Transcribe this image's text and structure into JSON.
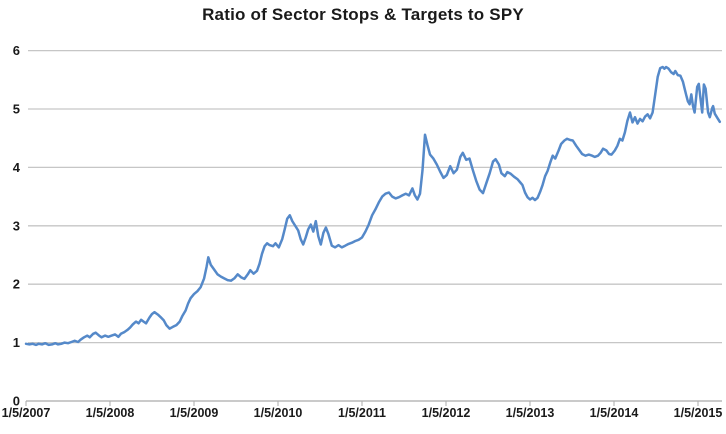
{
  "page": {
    "background": "#ffffff"
  },
  "chart_data": {
    "type": "line",
    "title": "Ratio of Sector Stops & Targets to SPY",
    "xlabel": "",
    "ylabel": "",
    "legend": "none",
    "grid": "horizontal",
    "ylim": [
      0,
      6
    ],
    "y_ticks": [
      0,
      1,
      2,
      3,
      4,
      5,
      6
    ],
    "x_tick_labels": [
      "1/5/2007",
      "1/5/2008",
      "1/5/2009",
      "1/5/2010",
      "1/5/2011",
      "1/5/2012",
      "1/5/2013",
      "1/5/2014",
      "1/5/2015"
    ],
    "x_tick_years": [
      2007,
      2008,
      2009,
      2010,
      2011,
      2012,
      2013,
      2014,
      2015
    ],
    "xlim": [
      2007,
      2015.33
    ],
    "line_color": "#5589c9",
    "gridline_color": "#c6c6c6",
    "axis_color": "#ababab",
    "text_color": "#1a1a1a",
    "series": [
      {
        "name": "Ratio of Sector Stops & Targets to SPY",
        "points": [
          [
            2007.0,
            0.98
          ],
          [
            2007.04,
            0.97
          ],
          [
            2007.08,
            0.98
          ],
          [
            2007.12,
            0.96
          ],
          [
            2007.15,
            0.98
          ],
          [
            2007.19,
            0.97
          ],
          [
            2007.23,
            0.99
          ],
          [
            2007.27,
            0.96
          ],
          [
            2007.31,
            0.97
          ],
          [
            2007.35,
            0.99
          ],
          [
            2007.38,
            0.97
          ],
          [
            2007.42,
            0.98
          ],
          [
            2007.46,
            1.0
          ],
          [
            2007.5,
            0.99
          ],
          [
            2007.54,
            1.01
          ],
          [
            2007.58,
            1.03
          ],
          [
            2007.62,
            1.01
          ],
          [
            2007.65,
            1.05
          ],
          [
            2007.69,
            1.09
          ],
          [
            2007.73,
            1.12
          ],
          [
            2007.76,
            1.09
          ],
          [
            2007.8,
            1.15
          ],
          [
            2007.83,
            1.17
          ],
          [
            2007.87,
            1.12
          ],
          [
            2007.9,
            1.09
          ],
          [
            2007.94,
            1.12
          ],
          [
            2007.98,
            1.1
          ],
          [
            2008.02,
            1.12
          ],
          [
            2008.06,
            1.14
          ],
          [
            2008.1,
            1.1
          ],
          [
            2008.13,
            1.15
          ],
          [
            2008.17,
            1.18
          ],
          [
            2008.21,
            1.22
          ],
          [
            2008.24,
            1.26
          ],
          [
            2008.27,
            1.31
          ],
          [
            2008.31,
            1.36
          ],
          [
            2008.34,
            1.33
          ],
          [
            2008.37,
            1.39
          ],
          [
            2008.4,
            1.36
          ],
          [
            2008.43,
            1.33
          ],
          [
            2008.47,
            1.43
          ],
          [
            2008.5,
            1.49
          ],
          [
            2008.53,
            1.52
          ],
          [
            2008.57,
            1.48
          ],
          [
            2008.6,
            1.44
          ],
          [
            2008.64,
            1.38
          ],
          [
            2008.67,
            1.3
          ],
          [
            2008.71,
            1.24
          ],
          [
            2008.75,
            1.27
          ],
          [
            2008.79,
            1.3
          ],
          [
            2008.83,
            1.36
          ],
          [
            2008.86,
            1.45
          ],
          [
            2008.9,
            1.55
          ],
          [
            2008.93,
            1.67
          ],
          [
            2008.96,
            1.76
          ],
          [
            2009.0,
            1.83
          ],
          [
            2009.04,
            1.88
          ],
          [
            2009.08,
            1.95
          ],
          [
            2009.12,
            2.1
          ],
          [
            2009.15,
            2.3
          ],
          [
            2009.17,
            2.46
          ],
          [
            2009.2,
            2.33
          ],
          [
            2009.24,
            2.25
          ],
          [
            2009.28,
            2.17
          ],
          [
            2009.32,
            2.13
          ],
          [
            2009.36,
            2.1
          ],
          [
            2009.4,
            2.07
          ],
          [
            2009.44,
            2.06
          ],
          [
            2009.48,
            2.1
          ],
          [
            2009.52,
            2.17
          ],
          [
            2009.56,
            2.12
          ],
          [
            2009.6,
            2.09
          ],
          [
            2009.64,
            2.17
          ],
          [
            2009.67,
            2.24
          ],
          [
            2009.71,
            2.18
          ],
          [
            2009.75,
            2.23
          ],
          [
            2009.78,
            2.35
          ],
          [
            2009.81,
            2.52
          ],
          [
            2009.84,
            2.65
          ],
          [
            2009.87,
            2.7
          ],
          [
            2009.9,
            2.67
          ],
          [
            2009.94,
            2.65
          ],
          [
            2009.97,
            2.7
          ],
          [
            2010.01,
            2.63
          ],
          [
            2010.05,
            2.77
          ],
          [
            2010.08,
            2.94
          ],
          [
            2010.11,
            3.12
          ],
          [
            2010.14,
            3.18
          ],
          [
            2010.17,
            3.08
          ],
          [
            2010.21,
            2.99
          ],
          [
            2010.24,
            2.92
          ],
          [
            2010.27,
            2.77
          ],
          [
            2010.3,
            2.68
          ],
          [
            2010.33,
            2.8
          ],
          [
            2010.36,
            2.94
          ],
          [
            2010.39,
            3.02
          ],
          [
            2010.42,
            2.9
          ],
          [
            2010.45,
            3.08
          ],
          [
            2010.48,
            2.82
          ],
          [
            2010.51,
            2.68
          ],
          [
            2010.54,
            2.88
          ],
          [
            2010.57,
            2.97
          ],
          [
            2010.6,
            2.86
          ],
          [
            2010.64,
            2.66
          ],
          [
            2010.68,
            2.63
          ],
          [
            2010.72,
            2.67
          ],
          [
            2010.76,
            2.63
          ],
          [
            2010.8,
            2.66
          ],
          [
            2010.84,
            2.69
          ],
          [
            2010.88,
            2.71
          ],
          [
            2010.92,
            2.74
          ],
          [
            2010.96,
            2.76
          ],
          [
            2011.0,
            2.8
          ],
          [
            2011.04,
            2.9
          ],
          [
            2011.08,
            3.02
          ],
          [
            2011.12,
            3.18
          ],
          [
            2011.16,
            3.28
          ],
          [
            2011.2,
            3.4
          ],
          [
            2011.24,
            3.5
          ],
          [
            2011.28,
            3.55
          ],
          [
            2011.32,
            3.57
          ],
          [
            2011.36,
            3.5
          ],
          [
            2011.4,
            3.47
          ],
          [
            2011.44,
            3.49
          ],
          [
            2011.48,
            3.52
          ],
          [
            2011.52,
            3.55
          ],
          [
            2011.56,
            3.52
          ],
          [
            2011.6,
            3.64
          ],
          [
            2011.63,
            3.52
          ],
          [
            2011.66,
            3.45
          ],
          [
            2011.69,
            3.55
          ],
          [
            2011.72,
            3.95
          ],
          [
            2011.75,
            4.56
          ],
          [
            2011.78,
            4.38
          ],
          [
            2011.81,
            4.22
          ],
          [
            2011.85,
            4.15
          ],
          [
            2011.89,
            4.05
          ],
          [
            2011.93,
            3.93
          ],
          [
            2011.97,
            3.82
          ],
          [
            2012.01,
            3.87
          ],
          [
            2012.05,
            4.02
          ],
          [
            2012.09,
            3.9
          ],
          [
            2012.13,
            3.96
          ],
          [
            2012.17,
            4.18
          ],
          [
            2012.2,
            4.25
          ],
          [
            2012.24,
            4.13
          ],
          [
            2012.28,
            4.15
          ],
          [
            2012.32,
            3.95
          ],
          [
            2012.36,
            3.77
          ],
          [
            2012.4,
            3.62
          ],
          [
            2012.44,
            3.56
          ],
          [
            2012.48,
            3.73
          ],
          [
            2012.52,
            3.9
          ],
          [
            2012.56,
            4.1
          ],
          [
            2012.59,
            4.14
          ],
          [
            2012.63,
            4.05
          ],
          [
            2012.66,
            3.9
          ],
          [
            2012.7,
            3.85
          ],
          [
            2012.73,
            3.92
          ],
          [
            2012.77,
            3.89
          ],
          [
            2012.81,
            3.84
          ],
          [
            2012.85,
            3.8
          ],
          [
            2012.88,
            3.75
          ],
          [
            2012.91,
            3.7
          ],
          [
            2012.94,
            3.57
          ],
          [
            2012.97,
            3.49
          ],
          [
            2013.0,
            3.45
          ],
          [
            2013.03,
            3.48
          ],
          [
            2013.06,
            3.44
          ],
          [
            2013.09,
            3.48
          ],
          [
            2013.12,
            3.58
          ],
          [
            2013.15,
            3.7
          ],
          [
            2013.18,
            3.85
          ],
          [
            2013.21,
            3.94
          ],
          [
            2013.24,
            4.08
          ],
          [
            2013.27,
            4.2
          ],
          [
            2013.3,
            4.15
          ],
          [
            2013.34,
            4.29
          ],
          [
            2013.37,
            4.4
          ],
          [
            2013.41,
            4.46
          ],
          [
            2013.44,
            4.49
          ],
          [
            2013.48,
            4.47
          ],
          [
            2013.51,
            4.46
          ],
          [
            2013.55,
            4.37
          ],
          [
            2013.59,
            4.29
          ],
          [
            2013.62,
            4.23
          ],
          [
            2013.66,
            4.2
          ],
          [
            2013.7,
            4.22
          ],
          [
            2013.74,
            4.2
          ],
          [
            2013.77,
            4.18
          ],
          [
            2013.81,
            4.2
          ],
          [
            2013.84,
            4.25
          ],
          [
            2013.87,
            4.32
          ],
          [
            2013.91,
            4.29
          ],
          [
            2013.94,
            4.23
          ],
          [
            2013.97,
            4.22
          ],
          [
            2014.01,
            4.29
          ],
          [
            2014.04,
            4.37
          ],
          [
            2014.07,
            4.49
          ],
          [
            2014.1,
            4.46
          ],
          [
            2014.13,
            4.6
          ],
          [
            2014.16,
            4.8
          ],
          [
            2014.19,
            4.94
          ],
          [
            2014.22,
            4.77
          ],
          [
            2014.25,
            4.86
          ],
          [
            2014.28,
            4.75
          ],
          [
            2014.31,
            4.83
          ],
          [
            2014.34,
            4.79
          ],
          [
            2014.37,
            4.87
          ],
          [
            2014.4,
            4.91
          ],
          [
            2014.43,
            4.84
          ],
          [
            2014.46,
            4.94
          ],
          [
            2014.49,
            5.25
          ],
          [
            2014.52,
            5.55
          ],
          [
            2014.55,
            5.7
          ],
          [
            2014.58,
            5.72
          ],
          [
            2014.6,
            5.69
          ],
          [
            2014.62,
            5.72
          ],
          [
            2014.65,
            5.69
          ],
          [
            2014.68,
            5.63
          ],
          [
            2014.71,
            5.6
          ],
          [
            2014.73,
            5.65
          ],
          [
            2014.76,
            5.58
          ],
          [
            2014.79,
            5.57
          ],
          [
            2014.82,
            5.47
          ],
          [
            2014.84,
            5.35
          ],
          [
            2014.86,
            5.24
          ],
          [
            2014.88,
            5.13
          ],
          [
            2014.9,
            5.08
          ],
          [
            2014.92,
            5.25
          ],
          [
            2014.94,
            5.05
          ],
          [
            2014.96,
            4.94
          ],
          [
            2014.99,
            5.38
          ],
          [
            2015.01,
            5.43
          ],
          [
            2015.03,
            5.18
          ],
          [
            2015.05,
            4.94
          ],
          [
            2015.07,
            5.42
          ],
          [
            2015.09,
            5.35
          ],
          [
            2015.11,
            5.08
          ],
          [
            2015.12,
            4.94
          ],
          [
            2015.14,
            4.86
          ],
          [
            2015.17,
            5.02
          ],
          [
            2015.18,
            5.05
          ],
          [
            2015.2,
            4.92
          ],
          [
            2015.23,
            4.85
          ],
          [
            2015.26,
            4.78
          ]
        ]
      }
    ]
  }
}
